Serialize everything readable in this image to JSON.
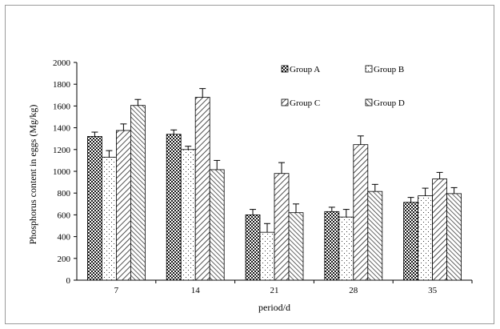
{
  "chart_data": {
    "type": "bar",
    "title": "",
    "xlabel": "period/d",
    "ylabel": "Phosphorus content in eggs  (Mg/kg)",
    "categories": [
      "7",
      "14",
      "21",
      "28",
      "35"
    ],
    "ylim": [
      0,
      2000
    ],
    "yticks": [
      0,
      200,
      400,
      600,
      800,
      1000,
      1200,
      1400,
      1600,
      1800,
      2000
    ],
    "grid": false,
    "legend": "top-right, two columns",
    "series": [
      {
        "name": "Group A",
        "pattern": "dotted-grid",
        "values": [
          1320,
          1340,
          600,
          630,
          715
        ],
        "errors": [
          40,
          40,
          50,
          40,
          45
        ]
      },
      {
        "name": "Group B",
        "pattern": "sparse-dots",
        "values": [
          1130,
          1200,
          440,
          580,
          775
        ],
        "errors": [
          60,
          30,
          80,
          70,
          70
        ]
      },
      {
        "name": "Group C",
        "pattern": "diagonal-hatch",
        "values": [
          1375,
          1680,
          980,
          1245,
          930
        ],
        "errors": [
          60,
          80,
          100,
          80,
          60
        ]
      },
      {
        "name": "Group D",
        "pattern": "dense-diagonal-hatch",
        "values": [
          1605,
          1015,
          620,
          815,
          795
        ],
        "errors": [
          55,
          85,
          80,
          65,
          55
        ]
      }
    ]
  }
}
